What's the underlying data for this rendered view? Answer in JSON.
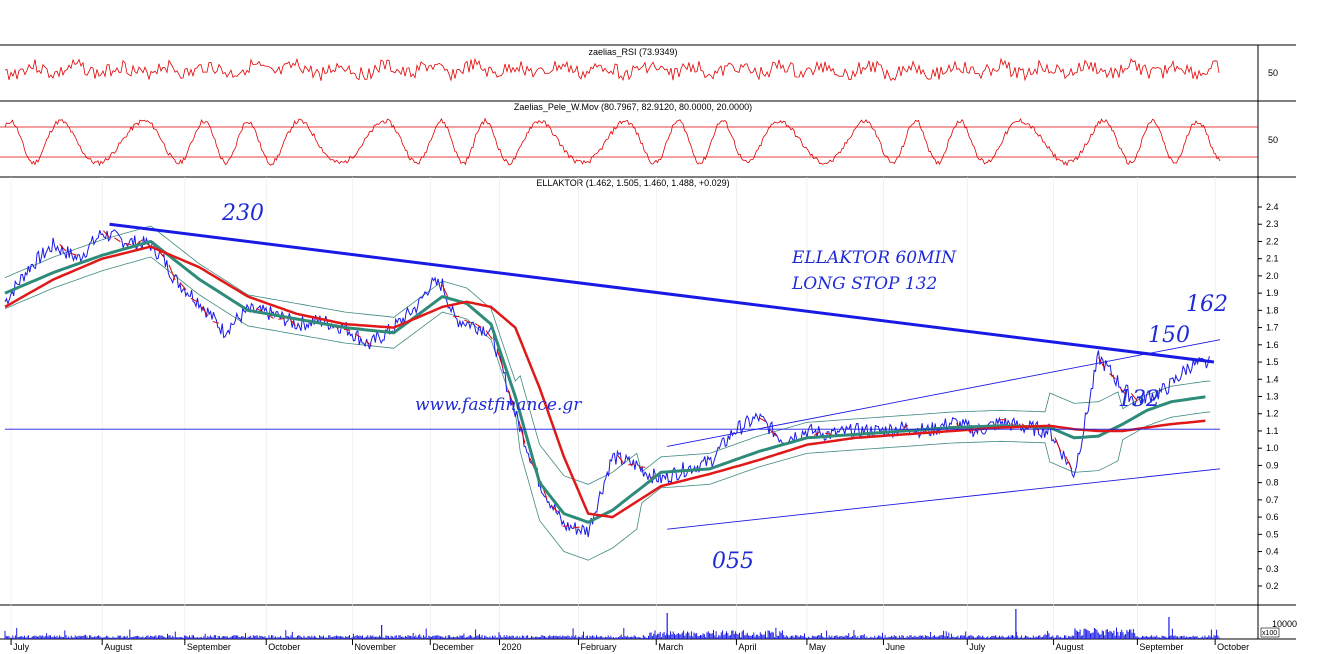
{
  "chart_data": [
    {
      "type": "line",
      "panel": "rsi",
      "title": "zaelias_RSI (73.9349)",
      "yticks": [
        "50"
      ],
      "colors": {
        "line": "#e00000"
      }
    },
    {
      "type": "line",
      "panel": "oscillator",
      "title": "Zaelias_Pele_W.Mov (80.7967, 82.9120, 80.0000, 20.0000)",
      "yticks": [
        "50"
      ],
      "reference_levels": [
        80,
        20
      ],
      "colors": {
        "line": "#e00000",
        "levels": "#e00000"
      }
    },
    {
      "type": "line",
      "panel": "price",
      "title": "ELLAKTOR (1.462, 1.505, 1.460, 1.488, +0.029)",
      "ylim": [
        0.1,
        2.45
      ],
      "yticks": [
        "2.4",
        "2.3",
        "2.2",
        "2.1",
        "2.0",
        "1.9",
        "1.8",
        "1.7",
        "1.6",
        "1.5",
        "1.4",
        "1.3",
        "1.2",
        "1.1",
        "1.0",
        "0.9",
        "0.8",
        "0.7",
        "0.6",
        "0.5",
        "0.4",
        "0.3",
        "0.2"
      ],
      "x_months": [
        "July",
        "August",
        "September",
        "October",
        "November",
        "December",
        "2020",
        "February",
        "March",
        "April",
        "May",
        "June",
        "July",
        "August",
        "September",
        "October"
      ],
      "series": [
        {
          "color": "#1a1ae6",
          "x": [
            0,
            2,
            4,
            6,
            8,
            10,
            12,
            13,
            14,
            16,
            18,
            20,
            22,
            24,
            26,
            28,
            30,
            32,
            34,
            35,
            36,
            37,
            38,
            40,
            42,
            44,
            46,
            48,
            50,
            52,
            53,
            54,
            56,
            58,
            60,
            62,
            64,
            66,
            68,
            70,
            72,
            74,
            76,
            78,
            80,
            82,
            84,
            86,
            88,
            90,
            92,
            93,
            94,
            95,
            96,
            97.5,
            99
          ],
          "values": [
            1.85,
            2.05,
            2.18,
            2.1,
            2.25,
            2.2,
            2.18,
            2.1,
            1.98,
            1.85,
            1.68,
            1.8,
            1.78,
            1.72,
            1.74,
            1.7,
            1.6,
            1.7,
            1.83,
            1.95,
            1.95,
            1.75,
            1.73,
            1.68,
            1.2,
            0.8,
            0.55,
            0.52,
            0.95,
            0.9,
            0.85,
            0.82,
            0.88,
            0.92,
            1.1,
            1.18,
            1.05,
            1.1,
            1.08,
            1.1,
            1.1,
            1.12,
            1.1,
            1.15,
            1.1,
            1.15,
            1.12,
            1.1,
            0.85,
            1.53,
            1.35,
            1.28,
            1.3,
            1.32,
            1.37,
            1.48,
            1.49
          ]
        },
        {
          "color": "#2e8b7a",
          "x": [
            0,
            4,
            8,
            12,
            16,
            20,
            24,
            28,
            32,
            36,
            38,
            40,
            42,
            44,
            46,
            48,
            50,
            54,
            58,
            62,
            66,
            70,
            74,
            78,
            82,
            86,
            88,
            90,
            92,
            94,
            96,
            99
          ],
          "values": [
            1.9,
            2.02,
            2.12,
            2.2,
            1.98,
            1.8,
            1.75,
            1.7,
            1.67,
            1.88,
            1.84,
            1.72,
            1.3,
            0.8,
            0.62,
            0.57,
            0.64,
            0.86,
            0.88,
            0.98,
            1.06,
            1.08,
            1.1,
            1.12,
            1.13,
            1.12,
            1.06,
            1.07,
            1.14,
            1.22,
            1.27,
            1.3
          ]
        },
        {
          "color": "#e01818",
          "x": [
            0,
            4,
            8,
            12,
            16,
            20,
            24,
            28,
            32,
            36,
            38,
            40,
            42,
            44,
            46,
            48,
            50,
            54,
            58,
            62,
            66,
            70,
            74,
            78,
            82,
            86,
            88,
            90,
            92,
            94,
            96,
            99
          ],
          "values": [
            1.82,
            1.98,
            2.1,
            2.17,
            2.05,
            1.88,
            1.78,
            1.72,
            1.7,
            1.82,
            1.85,
            1.82,
            1.7,
            1.35,
            0.95,
            0.62,
            0.6,
            0.78,
            0.85,
            0.93,
            1.02,
            1.06,
            1.08,
            1.1,
            1.12,
            1.13,
            1.11,
            1.1,
            1.1,
            1.12,
            1.14,
            1.16
          ]
        }
      ],
      "annotations": [
        "230",
        "ELLAKTOR 60MIN",
        "LONG STOP 132",
        "www.fastfinance.gr",
        "150",
        "162",
        "132",
        "055"
      ],
      "trendlines": [
        {
          "from": [
            8.6,
            2.3
          ],
          "to": [
            99.5,
            1.5
          ],
          "color": "#1a1ae6"
        },
        {
          "from": [
            0,
            1.11
          ],
          "to": [
            100,
            1.11
          ],
          "color": "#1a1ae6"
        },
        {
          "from": [
            54.5,
            1.01
          ],
          "to": [
            100,
            1.63
          ],
          "color": "#1a1ae6"
        },
        {
          "from": [
            54.5,
            0.53
          ],
          "to": [
            100,
            0.88
          ],
          "color": "#1a1ae6"
        }
      ],
      "colors": {
        "price": "#1a1ae6",
        "down": "#e00000",
        "ma_fast": "#2e8b7a",
        "ma_slow": "#e01818",
        "bands": "#3f8a80"
      }
    },
    {
      "type": "bar",
      "panel": "volume",
      "yticks": [
        "10000"
      ],
      "unit": "x100",
      "colors": {
        "bars": "#1a1ae6"
      }
    }
  ]
}
